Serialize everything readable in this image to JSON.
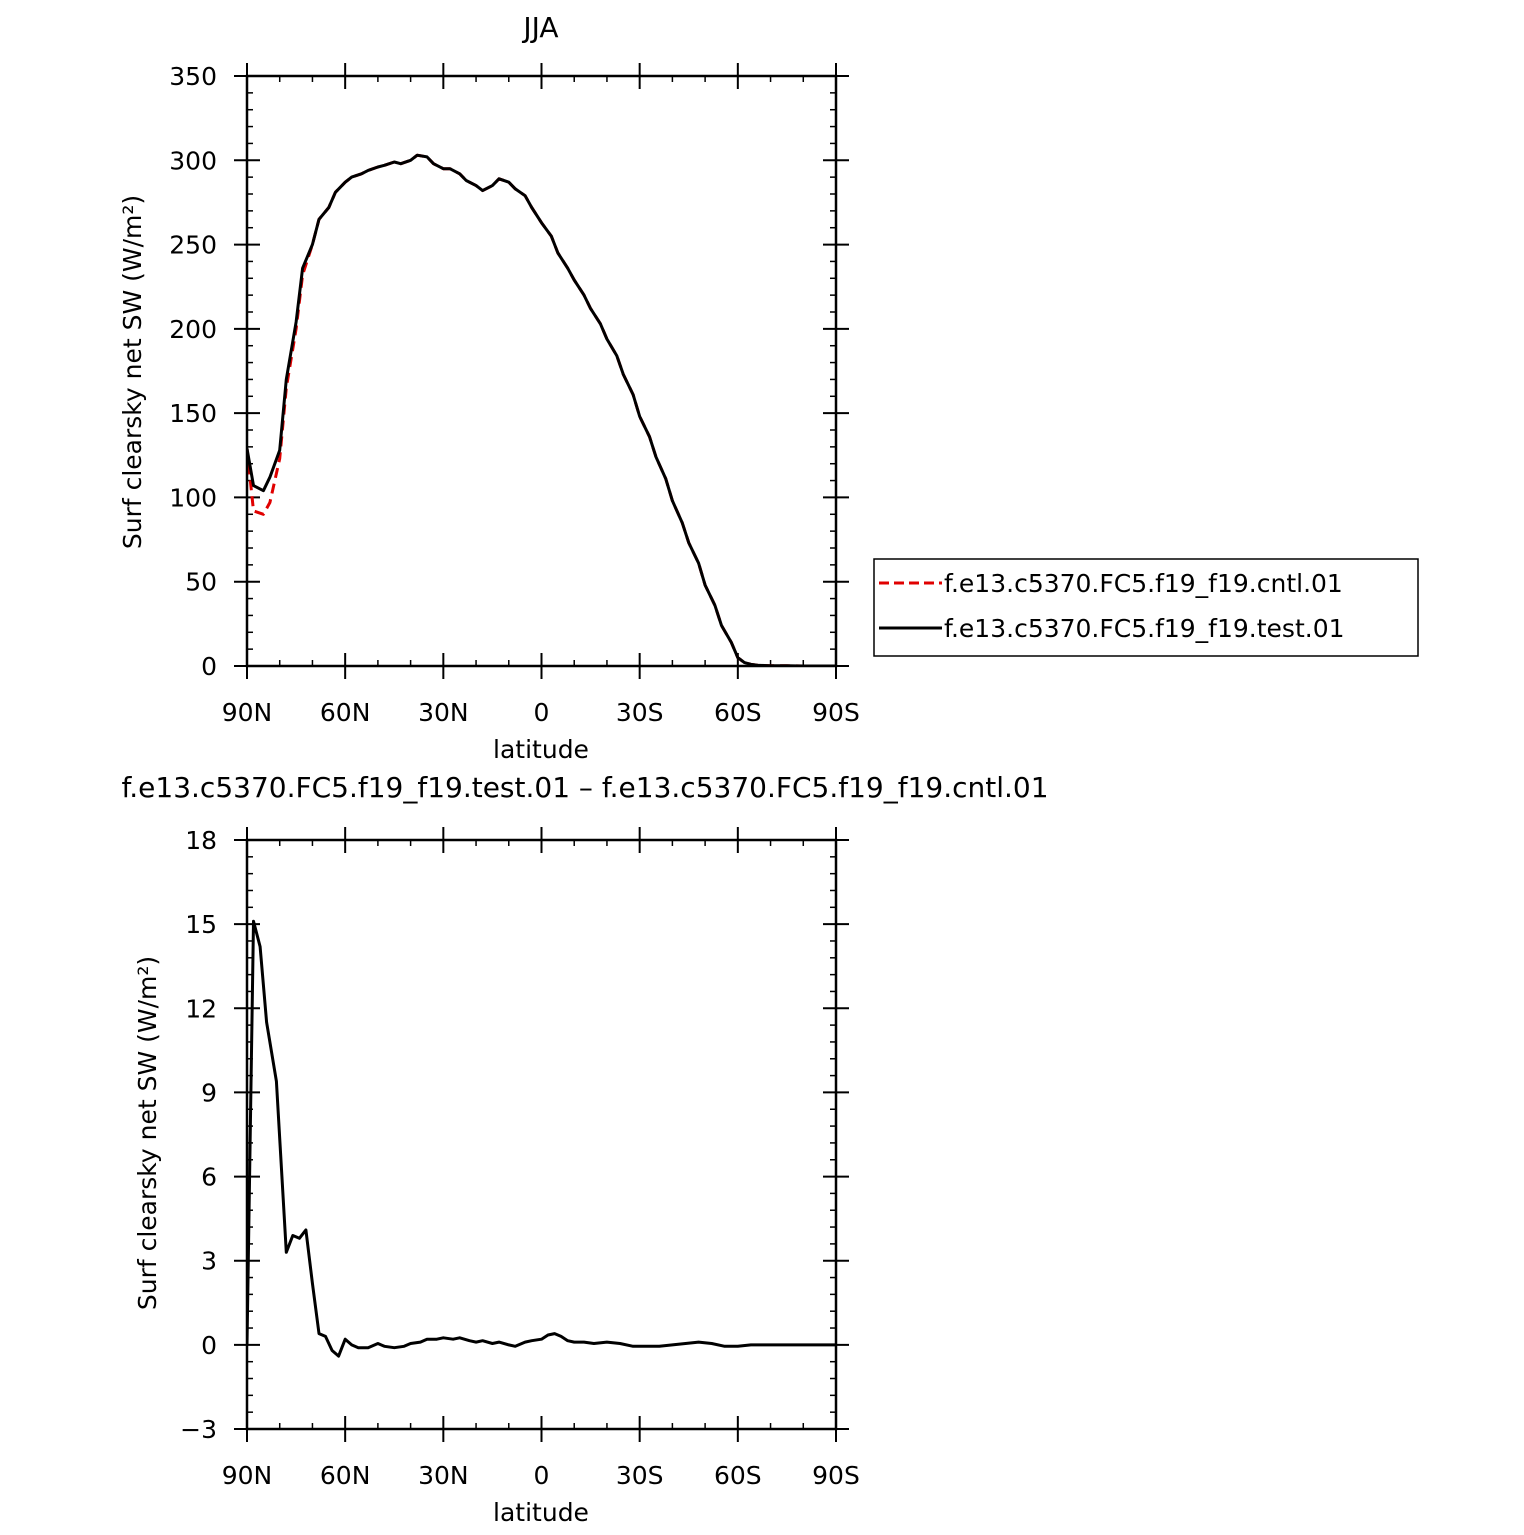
{
  "chart_data": [
    {
      "type": "line",
      "title": "JJA",
      "xlabel": "latitude",
      "ylabel": "Surf clearsky net SW (W/m²)",
      "xlim": [
        90,
        -90
      ],
      "ylim": [
        0,
        350
      ],
      "xticks": [
        90,
        60,
        30,
        0,
        -30,
        -60,
        -90
      ],
      "xtick_labels": [
        "90N",
        "60N",
        "30N",
        "0",
        "30S",
        "60S",
        "90S"
      ],
      "yticks": [
        0,
        50,
        100,
        150,
        200,
        250,
        300,
        350
      ],
      "ytick_labels": [
        "0",
        "50",
        "100",
        "150",
        "200",
        "250",
        "300",
        "350"
      ],
      "legend_position": "right",
      "series": [
        {
          "name": "f.e13.c5370.FC5.f19_f19.cntl.01",
          "color": "#e00000",
          "dash": "dashed",
          "x": [
            90,
            88,
            85,
            83,
            80,
            78,
            75,
            73,
            70,
            68,
            65,
            63,
            60,
            58,
            55,
            53,
            50,
            48,
            45,
            43,
            40,
            38,
            35,
            33,
            30,
            28,
            25,
            23,
            20,
            18,
            15,
            13,
            10,
            8,
            5,
            3,
            0,
            -3,
            -5,
            -8,
            -10,
            -13,
            -15,
            -18,
            -20,
            -23,
            -25,
            -28,
            -30,
            -33,
            -35,
            -38,
            -40,
            -43,
            -45,
            -48,
            -50,
            -53,
            -55,
            -58,
            -60,
            -62,
            -64,
            -66,
            -68,
            -70,
            -75,
            -80,
            -85,
            -90
          ],
          "y": [
            129,
            92,
            90,
            97,
            123,
            165,
            200,
            232,
            250,
            265,
            272,
            281,
            287,
            290,
            292,
            294,
            296,
            297,
            299,
            298,
            300,
            303,
            302,
            298,
            295,
            295,
            292,
            288,
            285,
            282,
            285,
            289,
            287,
            283,
            279,
            272,
            263,
            255,
            245,
            236,
            229,
            220,
            212,
            203,
            194,
            184,
            173,
            161,
            148,
            136,
            124,
            111,
            98,
            85,
            73,
            61,
            48,
            36,
            24,
            14,
            5,
            2,
            1,
            0.5,
            0.3,
            0.2,
            0.1,
            0,
            0,
            0
          ]
        },
        {
          "name": "f.e13.c5370.FC5.f19_f19.test.01",
          "color": "#000000",
          "dash": "solid",
          "x": [
            90,
            88,
            85,
            83,
            80,
            78,
            75,
            73,
            70,
            68,
            65,
            63,
            60,
            58,
            55,
            53,
            50,
            48,
            45,
            43,
            40,
            38,
            35,
            33,
            30,
            28,
            25,
            23,
            20,
            18,
            15,
            13,
            10,
            8,
            5,
            3,
            0,
            -3,
            -5,
            -8,
            -10,
            -13,
            -15,
            -18,
            -20,
            -23,
            -25,
            -28,
            -30,
            -33,
            -35,
            -38,
            -40,
            -43,
            -45,
            -48,
            -50,
            -53,
            -55,
            -58,
            -60,
            -62,
            -64,
            -66,
            -68,
            -70,
            -75,
            -80,
            -85,
            -90
          ],
          "y": [
            129,
            107,
            104,
            112,
            128,
            170,
            204,
            236,
            250,
            265,
            272,
            281,
            287,
            290,
            292,
            294,
            296,
            297,
            299,
            298,
            300,
            303,
            302,
            298,
            295,
            295,
            292,
            288,
            285,
            282,
            285,
            289,
            287,
            283,
            279,
            272,
            263,
            255,
            245,
            236,
            229,
            220,
            212,
            203,
            194,
            184,
            173,
            161,
            148,
            136,
            124,
            111,
            98,
            85,
            73,
            61,
            48,
            36,
            24,
            14,
            5,
            2,
            1,
            0.5,
            0.3,
            0.2,
            0.1,
            0,
            0,
            0
          ]
        }
      ]
    },
    {
      "type": "line",
      "title": "f.e13.c5370.FC5.f19_f19.test.01 – f.e13.c5370.FC5.f19_f19.cntl.01",
      "xlabel": "latitude",
      "ylabel": "Surf clearsky net SW (W/m²)",
      "xlim": [
        90,
        -90
      ],
      "ylim": [
        -3,
        18
      ],
      "xticks": [
        90,
        60,
        30,
        0,
        -30,
        -60,
        -90
      ],
      "xtick_labels": [
        "90N",
        "60N",
        "30N",
        "0",
        "30S",
        "60S",
        "90S"
      ],
      "yticks": [
        -3,
        0,
        3,
        6,
        9,
        12,
        15,
        18
      ],
      "ytick_labels": [
        "−3",
        "0",
        "3",
        "6",
        "9",
        "12",
        "15",
        "18"
      ],
      "series": [
        {
          "color": "#000000",
          "dash": "solid",
          "x": [
            90,
            88,
            86,
            84,
            81,
            78,
            76,
            74,
            72,
            70,
            68,
            66,
            64,
            62,
            60,
            58,
            56,
            53,
            50,
            48,
            45,
            42,
            40,
            37,
            35,
            32,
            30,
            27,
            25,
            22,
            20,
            18,
            15,
            13,
            10,
            8,
            5,
            3,
            0,
            -2,
            -4,
            -6,
            -8,
            -10,
            -13,
            -16,
            -20,
            -24,
            -28,
            -32,
            -36,
            -40,
            -44,
            -48,
            -52,
            -56,
            -60,
            -64,
            -70,
            -80,
            -90
          ],
          "y": [
            0,
            15.1,
            14.2,
            11.5,
            9.4,
            3.3,
            3.9,
            3.8,
            4.1,
            2.2,
            0.4,
            0.3,
            -0.2,
            -0.4,
            0.2,
            0,
            -0.1,
            -0.1,
            0.05,
            -0.05,
            -0.1,
            -0.05,
            0.05,
            0.1,
            0.2,
            0.2,
            0.25,
            0.2,
            0.25,
            0.15,
            0.1,
            0.15,
            0.05,
            0.1,
            0,
            -0.05,
            0.1,
            0.15,
            0.2,
            0.35,
            0.4,
            0.3,
            0.15,
            0.1,
            0.1,
            0.05,
            0.1,
            0.05,
            -0.05,
            -0.05,
            -0.05,
            0,
            0.05,
            0.1,
            0.05,
            -0.05,
            -0.05,
            0,
            0,
            0,
            0
          ]
        }
      ]
    }
  ]
}
